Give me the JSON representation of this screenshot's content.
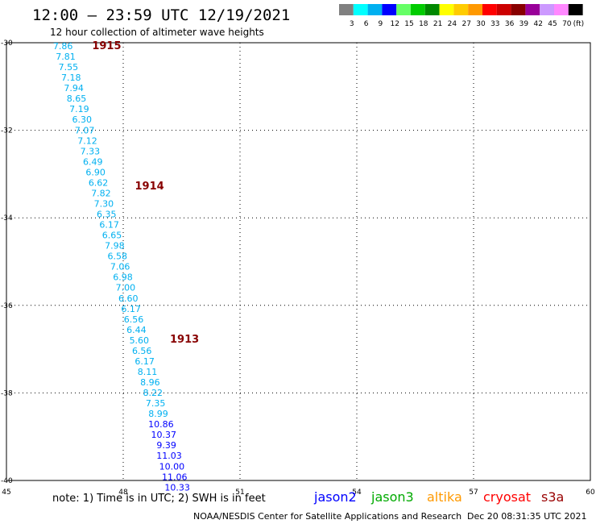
{
  "header": {
    "title": "12:00 – 23:59 UTC 12/19/2021",
    "subtitle": "12 hour collection of altimeter wave heights"
  },
  "legend": {
    "unit": "(ft)",
    "bins": [
      {
        "label": "3",
        "color": "#808080"
      },
      {
        "label": "6",
        "color": "#00ffff"
      },
      {
        "label": "9",
        "color": "#00b0f0"
      },
      {
        "label": "12",
        "color": "#0000ff"
      },
      {
        "label": "15",
        "color": "#66ff66"
      },
      {
        "label": "18",
        "color": "#00cc00"
      },
      {
        "label": "21",
        "color": "#008800"
      },
      {
        "label": "24",
        "color": "#ffff00"
      },
      {
        "label": "27",
        "color": "#ffcc00"
      },
      {
        "label": "30",
        "color": "#ff9900"
      },
      {
        "label": "33",
        "color": "#ff0000"
      },
      {
        "label": "36",
        "color": "#cc0000"
      },
      {
        "label": "39",
        "color": "#880000"
      },
      {
        "label": "42",
        "color": "#990099"
      },
      {
        "label": "45",
        "color": "#cc99ff"
      },
      {
        "label": "70",
        "color": "#ff88ff"
      },
      {
        "label": "",
        "color": "#000000"
      }
    ]
  },
  "axes": {
    "lon": {
      "min": 45,
      "max": 60,
      "ticks": [
        45,
        48,
        51,
        54,
        57,
        60
      ]
    },
    "lat": {
      "min": -40,
      "max": -30,
      "ticks": [
        -30,
        -32,
        -34,
        -36,
        -38,
        -40
      ]
    }
  },
  "pass_labels": [
    {
      "text": "1915",
      "lon": 47.2,
      "lat": -30.0
    },
    {
      "text": "1914",
      "lon": 48.3,
      "lat": -33.2
    },
    {
      "text": "1913",
      "lon": 49.2,
      "lat": -36.7
    }
  ],
  "tracks": [
    {
      "satellite": "jason2",
      "color": "#00b0f0",
      "points": [
        {
          "lon": 46.45,
          "lat": -30.0,
          "swh": "7.86"
        },
        {
          "lon": 46.52,
          "lat": -30.24,
          "swh": "7.81"
        },
        {
          "lon": 46.59,
          "lat": -30.48,
          "swh": "7.55"
        },
        {
          "lon": 46.66,
          "lat": -30.72,
          "swh": "7.18"
        },
        {
          "lon": 46.73,
          "lat": -30.96,
          "swh": "7.94"
        },
        {
          "lon": 46.8,
          "lat": -31.2,
          "swh": "8.65"
        },
        {
          "lon": 46.87,
          "lat": -31.44,
          "swh": "7.19"
        },
        {
          "lon": 46.94,
          "lat": -31.68,
          "swh": "6.30"
        },
        {
          "lon": 47.01,
          "lat": -31.92,
          "swh": "7.07"
        },
        {
          "lon": 47.08,
          "lat": -32.16,
          "swh": "7.12"
        },
        {
          "lon": 47.15,
          "lat": -32.4,
          "swh": "7.33"
        },
        {
          "lon": 47.22,
          "lat": -32.64,
          "swh": "6.49"
        },
        {
          "lon": 47.29,
          "lat": -32.88,
          "swh": "6.90"
        },
        {
          "lon": 47.36,
          "lat": -33.12,
          "swh": "6.62"
        },
        {
          "lon": 47.43,
          "lat": -33.36,
          "swh": "7.82"
        },
        {
          "lon": 47.5,
          "lat": -33.6,
          "swh": "7.30"
        },
        {
          "lon": 47.57,
          "lat": -33.84,
          "swh": "6.35"
        },
        {
          "lon": 47.64,
          "lat": -34.08,
          "swh": "6.17"
        },
        {
          "lon": 47.71,
          "lat": -34.32,
          "swh": "6.65"
        },
        {
          "lon": 47.78,
          "lat": -34.56,
          "swh": "7.98"
        },
        {
          "lon": 47.85,
          "lat": -34.8,
          "swh": "6.58"
        },
        {
          "lon": 47.92,
          "lat": -35.04,
          "swh": "7.06"
        },
        {
          "lon": 47.99,
          "lat": -35.28,
          "swh": "6.98"
        },
        {
          "lon": 48.06,
          "lat": -35.52,
          "swh": "7.00"
        },
        {
          "lon": 48.13,
          "lat": -35.76,
          "swh": "6.60"
        },
        {
          "lon": 48.2,
          "lat": -36.0,
          "swh": "6.17"
        },
        {
          "lon": 48.27,
          "lat": -36.24,
          "swh": "6.56"
        },
        {
          "lon": 48.34,
          "lat": -36.48,
          "swh": "6.44"
        },
        {
          "lon": 48.41,
          "lat": -36.72,
          "swh": "5.60"
        },
        {
          "lon": 48.48,
          "lat": -36.96,
          "swh": "6.56"
        },
        {
          "lon": 48.55,
          "lat": -37.2,
          "swh": "6.17"
        },
        {
          "lon": 48.62,
          "lat": -37.44,
          "swh": "8.11"
        },
        {
          "lon": 48.69,
          "lat": -37.68,
          "swh": "8.96"
        },
        {
          "lon": 48.76,
          "lat": -37.92,
          "swh": "8.22"
        },
        {
          "lon": 48.83,
          "lat": -38.16,
          "swh": "7.35"
        },
        {
          "lon": 48.9,
          "lat": -38.4,
          "swh": "8.99"
        }
      ]
    },
    {
      "satellite": "jason2",
      "color": "#0000ff",
      "points": [
        {
          "lon": 48.97,
          "lat": -38.64,
          "swh": "10.86"
        },
        {
          "lon": 49.04,
          "lat": -38.88,
          "swh": "10.37"
        },
        {
          "lon": 49.11,
          "lat": -39.12,
          "swh": "9.39"
        },
        {
          "lon": 49.18,
          "lat": -39.36,
          "swh": "11.03"
        },
        {
          "lon": 49.25,
          "lat": -39.6,
          "swh": "10.00"
        },
        {
          "lon": 49.32,
          "lat": -39.84,
          "swh": "11.06"
        },
        {
          "lon": 49.39,
          "lat": -40.08,
          "swh": "10.33"
        }
      ]
    }
  ],
  "footer": {
    "note": "note:  1) Time is in UTC;  2) SWH is in feet",
    "satellites": [
      {
        "name": "jason2",
        "color": "#0000ff"
      },
      {
        "name": "jason3",
        "color": "#00aa00"
      },
      {
        "name": "altika",
        "color": "#ff9900"
      },
      {
        "name": "cryosat",
        "color": "#ff0000"
      },
      {
        "name": "s3a",
        "color": "#990000"
      }
    ],
    "credit": "NOAA/NESDIS Center for Satellite Applications and Research",
    "timestamp": "Dec 20 08:31:35 UTC 2021"
  }
}
